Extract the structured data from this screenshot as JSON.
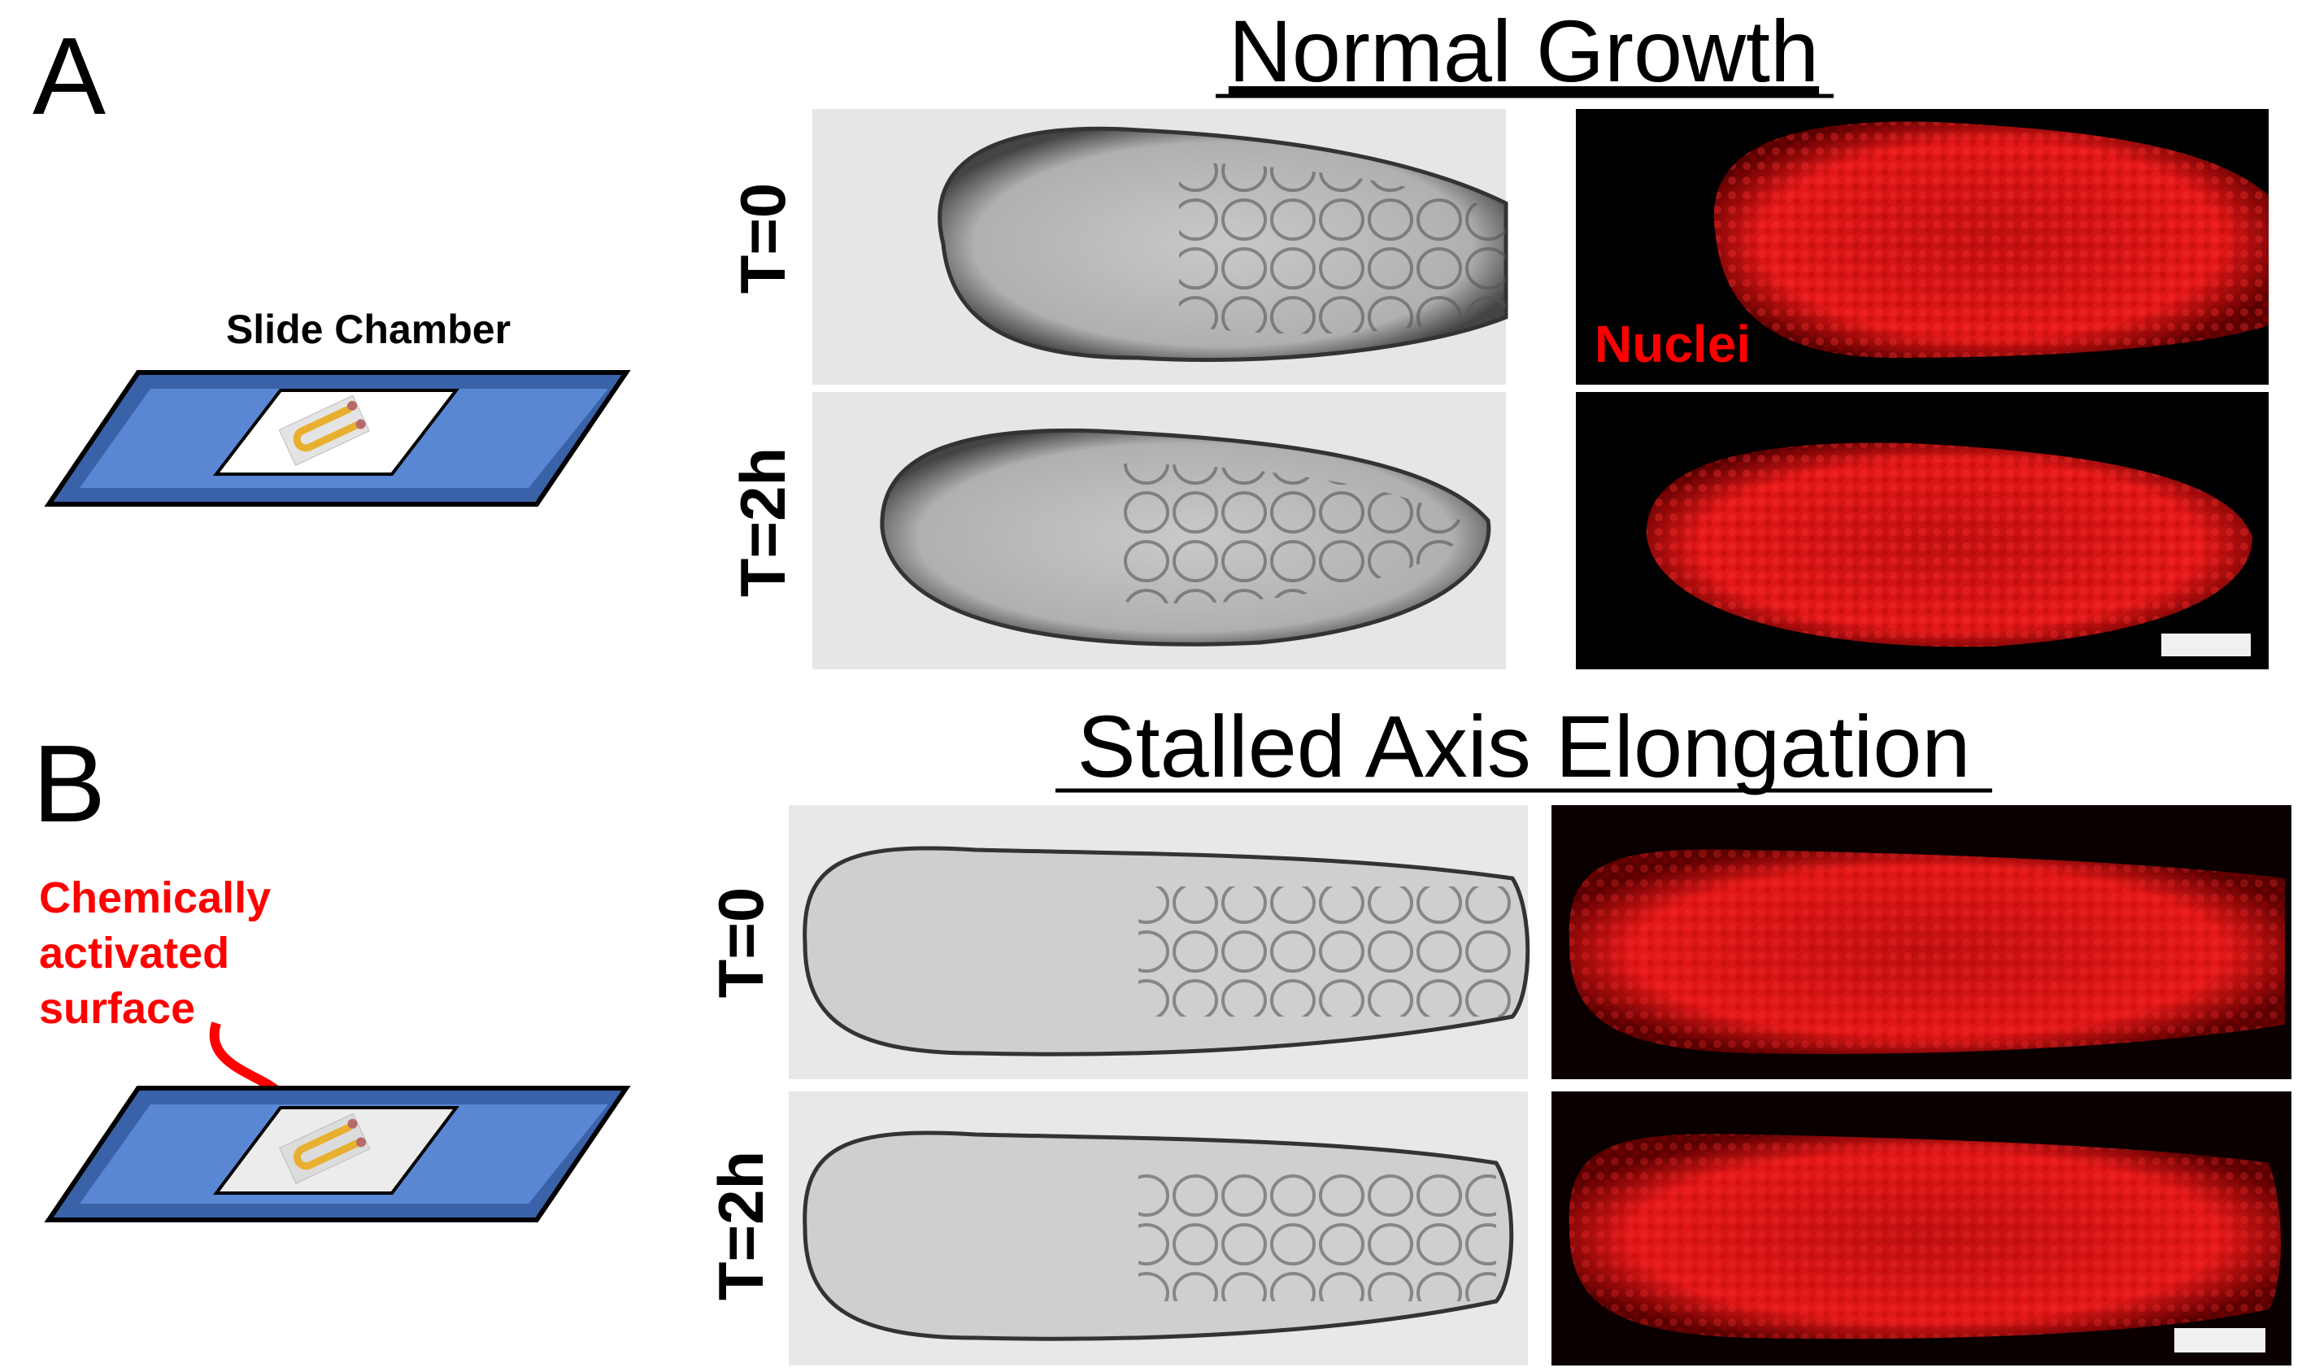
{
  "panel_a": {
    "letter": "A",
    "title": "Normal Growth",
    "slide_label": "Slide Chamber",
    "time_labels": [
      "T=0",
      "T=2h"
    ],
    "stain_label": "Nuclei"
  },
  "panel_b": {
    "letter": "B",
    "title": "Stalled Axis Elongation",
    "surface_label_lines": [
      "Chemically",
      "activated",
      "surface"
    ],
    "time_labels": [
      "T=0",
      "T=2h"
    ]
  },
  "colors": {
    "slide_blue": "#5a87d4",
    "slide_edge": "#3a62a8",
    "label_red": "#ff0000",
    "nuclei_red": "#e01010",
    "embryo_yellow": "#e8b030",
    "brightfield_bg": "#e6e6e6",
    "fluorescence_bg": "#000000"
  }
}
